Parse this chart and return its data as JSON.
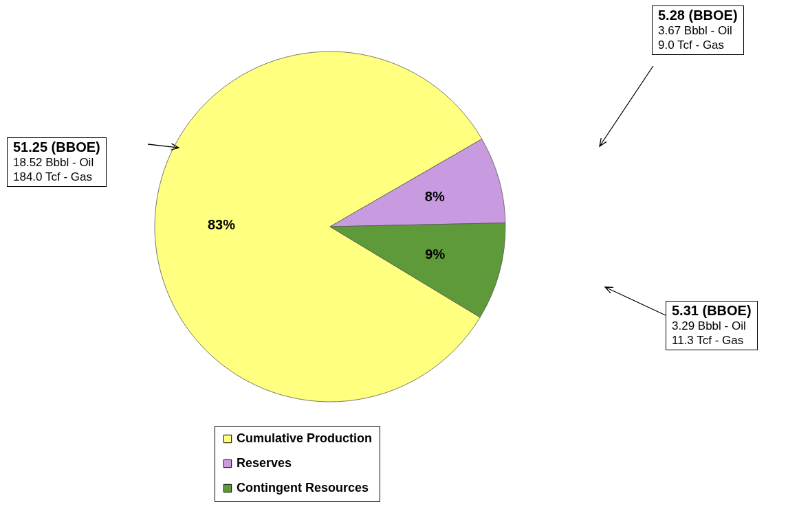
{
  "chart_data": {
    "type": "pie",
    "categories": [
      "Cumulative Production",
      "Reserves",
      "Contingent Resources"
    ],
    "values": [
      83,
      8,
      9
    ],
    "colors": [
      "#ffff80",
      "#c89be0",
      "#5f9a3a"
    ],
    "value_labels": [
      "83%",
      "8%",
      "9%"
    ],
    "legend": "bottom",
    "annotations": [
      "51.25 (BBOE)\n18.52 Bbbl - Oil\n184.0 Tcf - Gas",
      "5.28 (BBOE)\n3.67 Bbbl - Oil\n9.0 Tcf - Gas",
      "5.31 (BBOE)\n3.29 Bbbl - Oil\n11.3 Tcf - Gas"
    ]
  }
}
